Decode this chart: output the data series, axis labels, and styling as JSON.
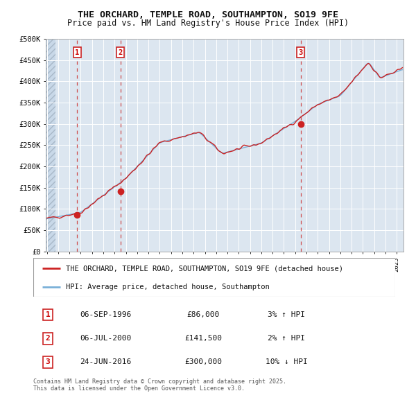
{
  "title_line1": "THE ORCHARD, TEMPLE ROAD, SOUTHAMPTON, SO19 9FE",
  "title_line2": "Price paid vs. HM Land Registry's House Price Index (HPI)",
  "background_color": "#ffffff",
  "plot_bg_color": "#dce6f0",
  "hatch_region_end": 1994.75,
  "hatch_color": "#b0bece",
  "grid_color": "#ffffff",
  "hpi_line_color": "#7ab0d8",
  "price_line_color": "#cc2222",
  "sale_marker_color": "#cc2222",
  "vline1_color": "#cc3333",
  "vline2_color": "#cc3333",
  "vline3_color": "#cc3333",
  "sale1_price": 86000,
  "sale1_x": 1996.68,
  "sale2_price": 141500,
  "sale2_x": 2000.51,
  "sale3_price": 300000,
  "sale3_x": 2016.48,
  "ylim": [
    0,
    500000
  ],
  "xlim_start": 1993.9,
  "xlim_end": 2025.6,
  "ytick_values": [
    0,
    50000,
    100000,
    150000,
    200000,
    250000,
    300000,
    350000,
    400000,
    450000,
    500000
  ],
  "ytick_labels": [
    "£0",
    "£50K",
    "£100K",
    "£150K",
    "£200K",
    "£250K",
    "£300K",
    "£350K",
    "£400K",
    "£450K",
    "£500K"
  ],
  "legend_label1": "THE ORCHARD, TEMPLE ROAD, SOUTHAMPTON, SO19 9FE (detached house)",
  "legend_label2": "HPI: Average price, detached house, Southampton",
  "table_row1": [
    "1",
    "06-SEP-1996",
    "£86,000",
    "3% ↑ HPI"
  ],
  "table_row2": [
    "2",
    "06-JUL-2000",
    "£141,500",
    "2% ↑ HPI"
  ],
  "table_row3": [
    "3",
    "24-JUN-2016",
    "£300,000",
    "10% ↓ HPI"
  ],
  "footnote": "Contains HM Land Registry data © Crown copyright and database right 2025.\nThis data is licensed under the Open Government Licence v3.0."
}
